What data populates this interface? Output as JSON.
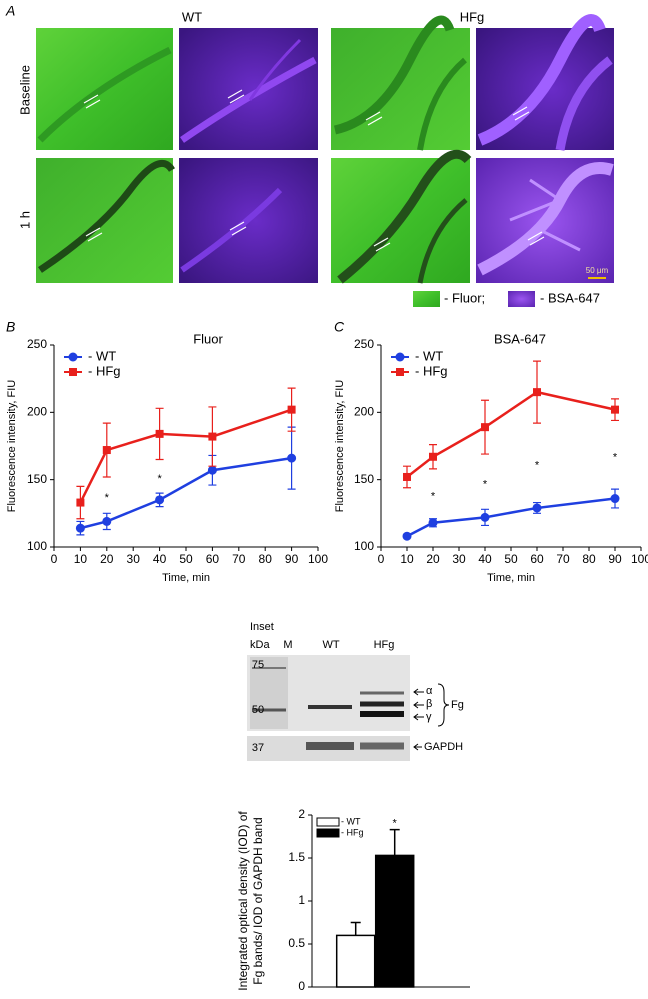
{
  "figure": {
    "panel_a": {
      "label": "A",
      "columns": [
        "WT",
        "HFg"
      ],
      "rows": [
        "Baseline",
        "1 h"
      ],
      "scale_bar": "50 μm",
      "legend": [
        "- Fluor;",
        "- BSA-647"
      ]
    },
    "panel_b_label": "B",
    "panel_c_label": "C",
    "inset": {
      "title": "Inset",
      "kda_header": "kDa",
      "lanes": [
        "M",
        "WT",
        "HFg"
      ],
      "markers": [
        "75",
        "50",
        "37"
      ],
      "chains": [
        "α",
        "β",
        "γ"
      ],
      "protein": "Fg",
      "control": "GAPDH"
    }
  },
  "chart_data": [
    {
      "type": "line",
      "title": "Fluor",
      "xlabel": "Time, min",
      "ylabel": "Fluorescence intensity, FIU",
      "x": [
        10,
        20,
        40,
        60,
        90
      ],
      "xlim": [
        0,
        100
      ],
      "xticks": [
        0,
        10,
        20,
        30,
        40,
        50,
        60,
        70,
        80,
        90,
        100
      ],
      "ylim": [
        100,
        250
      ],
      "yticks": [
        100,
        150,
        200,
        250
      ],
      "grid": false,
      "legend": "upper left",
      "series": [
        {
          "name": "- WT",
          "color": "#1f3fe0",
          "marker": "circle",
          "values": [
            114,
            119,
            135,
            157,
            166
          ],
          "errors": [
            5,
            6,
            5,
            11,
            23
          ]
        },
        {
          "name": "- HFg",
          "color": "#e8201c",
          "marker": "square",
          "values": [
            133,
            172,
            184,
            182,
            202
          ],
          "errors": [
            12,
            20,
            19,
            22,
            16
          ]
        }
      ],
      "annotations": [
        {
          "x": 20,
          "text": "*"
        },
        {
          "x": 40,
          "text": "*"
        }
      ]
    },
    {
      "type": "line",
      "title": "BSA-647",
      "xlabel": "Time, min",
      "ylabel": "Fluorescence intensity, FIU",
      "x": [
        10,
        20,
        40,
        60,
        90
      ],
      "xlim": [
        0,
        100
      ],
      "xticks": [
        0,
        10,
        20,
        30,
        40,
        50,
        60,
        70,
        80,
        90,
        100
      ],
      "ylim": [
        100,
        250
      ],
      "yticks": [
        100,
        150,
        200,
        250
      ],
      "grid": false,
      "legend": "upper left",
      "series": [
        {
          "name": "- WT",
          "color": "#1f3fe0",
          "marker": "circle",
          "values": [
            108,
            118,
            122,
            129,
            136
          ],
          "errors": [
            1,
            3,
            6,
            4,
            7
          ]
        },
        {
          "name": "- HFg",
          "color": "#e8201c",
          "marker": "square",
          "values": [
            152,
            167,
            189,
            215,
            202
          ],
          "errors": [
            8,
            9,
            20,
            23,
            8
          ]
        }
      ],
      "annotations": [
        {
          "x": 20,
          "text": "*"
        },
        {
          "x": 40,
          "text": "*"
        },
        {
          "x": 60,
          "text": "*"
        },
        {
          "x": 90,
          "text": "*"
        }
      ]
    },
    {
      "type": "bar",
      "ylabel": [
        "Integrated optical density (IOD) of",
        "Fg bands/ IOD of GAPDH band"
      ],
      "categories": [
        null
      ],
      "ylim": [
        0,
        2
      ],
      "yticks": [
        0,
        0.5,
        1,
        1.5,
        2
      ],
      "grid": false,
      "legend": "upper left",
      "series": [
        {
          "name": "- WT",
          "color": "#ffffff",
          "values": [
            0.6
          ],
          "errors": [
            0.15
          ]
        },
        {
          "name": "- HFg",
          "color": "#000000",
          "values": [
            1.53
          ],
          "errors": [
            0.3
          ]
        }
      ],
      "annotations": [
        {
          "series": 1,
          "index": 0,
          "text": "*"
        }
      ]
    }
  ]
}
